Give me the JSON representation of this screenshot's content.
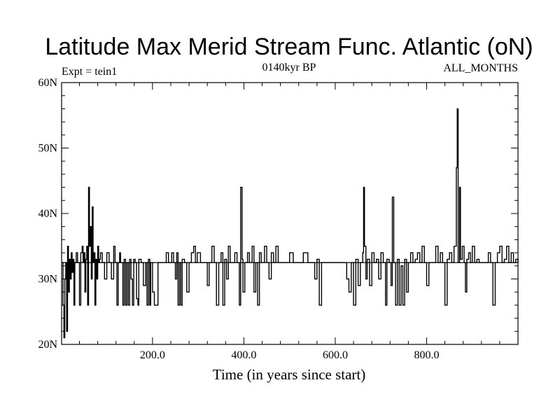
{
  "chart_data": {
    "type": "line",
    "title": "Latitude Max Merid Stream Func. Atlantic (oN)",
    "subtitle_left": "Expt = tein1",
    "subtitle_center": "0140kyr BP",
    "subtitle_right": "ALL_MONTHS",
    "xlabel": "Time (in years since start)",
    "ylabel": "",
    "xlim": [
      1,
      1000
    ],
    "ylim": [
      20,
      60
    ],
    "x_ticks": [
      200,
      400,
      600,
      800
    ],
    "x_tick_labels": [
      "200.0",
      "400.0",
      "600.0",
      "800.0"
    ],
    "y_ticks": [
      20,
      30,
      40,
      50,
      60
    ],
    "y_tick_labels": [
      "20N",
      "30N",
      "40N",
      "50N",
      "60N"
    ],
    "baseline": 32.5,
    "series": [
      {
        "name": "Latitude Max Merid Stream Func",
        "points": [
          [
            1,
            32.5
          ],
          [
            4,
            26
          ],
          [
            6,
            21
          ],
          [
            8,
            30
          ],
          [
            10,
            32.5
          ],
          [
            12,
            22
          ],
          [
            14,
            35
          ],
          [
            16,
            28
          ],
          [
            18,
            33
          ],
          [
            20,
            30
          ],
          [
            22,
            34
          ],
          [
            24,
            31
          ],
          [
            26,
            33
          ],
          [
            28,
            26
          ],
          [
            30,
            32.5
          ],
          [
            33,
            34
          ],
          [
            36,
            32.5
          ],
          [
            40,
            26
          ],
          [
            43,
            34
          ],
          [
            46,
            35
          ],
          [
            48,
            32.5
          ],
          [
            50,
            34
          ],
          [
            52,
            28
          ],
          [
            54,
            33
          ],
          [
            56,
            35
          ],
          [
            58,
            26
          ],
          [
            60,
            44
          ],
          [
            62,
            35
          ],
          [
            64,
            38
          ],
          [
            66,
            30
          ],
          [
            68,
            41
          ],
          [
            70,
            32.5
          ],
          [
            72,
            34
          ],
          [
            74,
            26
          ],
          [
            76,
            33
          ],
          [
            78,
            30
          ],
          [
            80,
            35
          ],
          [
            82,
            32.5
          ],
          [
            84,
            33
          ],
          [
            86,
            34
          ],
          [
            90,
            32.5
          ],
          [
            95,
            30
          ],
          [
            100,
            34
          ],
          [
            105,
            32.5
          ],
          [
            110,
            30
          ],
          [
            115,
            35
          ],
          [
            118,
            32.5
          ],
          [
            122,
            26
          ],
          [
            125,
            32.5
          ],
          [
            128,
            34
          ],
          [
            130,
            32.5
          ],
          [
            135,
            26
          ],
          [
            138,
            33
          ],
          [
            141,
            26
          ],
          [
            144,
            32.5
          ],
          [
            147,
            26
          ],
          [
            150,
            33
          ],
          [
            153,
            30
          ],
          [
            156,
            26
          ],
          [
            159,
            33
          ],
          [
            162,
            32.5
          ],
          [
            165,
            27
          ],
          [
            168,
            26
          ],
          [
            170,
            33
          ],
          [
            175,
            32.5
          ],
          [
            180,
            29
          ],
          [
            185,
            32.5
          ],
          [
            188,
            26
          ],
          [
            191,
            33
          ],
          [
            194,
            26
          ],
          [
            196,
            32.5
          ],
          [
            200,
            28
          ],
          [
            204,
            26
          ],
          [
            208,
            26
          ],
          [
            212,
            32.5
          ],
          [
            225,
            32.5
          ],
          [
            230,
            34
          ],
          [
            235,
            32.5
          ],
          [
            242,
            34
          ],
          [
            246,
            32.5
          ],
          [
            250,
            30
          ],
          [
            253,
            34
          ],
          [
            256,
            26
          ],
          [
            259,
            32.5
          ],
          [
            262,
            26
          ],
          [
            265,
            33
          ],
          [
            270,
            32.5
          ],
          [
            275,
            28
          ],
          [
            280,
            32.5
          ],
          [
            285,
            34
          ],
          [
            290,
            35
          ],
          [
            294,
            32.5
          ],
          [
            298,
            34
          ],
          [
            305,
            32.5
          ],
          [
            315,
            32.5
          ],
          [
            320,
            29
          ],
          [
            324,
            32.5
          ],
          [
            330,
            35
          ],
          [
            335,
            32.5
          ],
          [
            340,
            26
          ],
          [
            345,
            32.5
          ],
          [
            350,
            34
          ],
          [
            354,
            26
          ],
          [
            358,
            33
          ],
          [
            362,
            30
          ],
          [
            366,
            35
          ],
          [
            370,
            32.5
          ],
          [
            375,
            32.5
          ],
          [
            380,
            34
          ],
          [
            385,
            32.5
          ],
          [
            390,
            26
          ],
          [
            393,
            44
          ],
          [
            396,
            33
          ],
          [
            398,
            28
          ],
          [
            402,
            32.5
          ],
          [
            408,
            34
          ],
          [
            412,
            32.5
          ],
          [
            418,
            35
          ],
          [
            422,
            28
          ],
          [
            426,
            32.5
          ],
          [
            430,
            26
          ],
          [
            434,
            34
          ],
          [
            438,
            32.5
          ],
          [
            445,
            35
          ],
          [
            450,
            32.5
          ],
          [
            455,
            30
          ],
          [
            460,
            34
          ],
          [
            465,
            32.5
          ],
          [
            470,
            35
          ],
          [
            475,
            32.5
          ],
          [
            485,
            32.5
          ],
          [
            500,
            34
          ],
          [
            508,
            32.5
          ],
          [
            520,
            32.5
          ],
          [
            530,
            34
          ],
          [
            540,
            32.5
          ],
          [
            555,
            30
          ],
          [
            560,
            33
          ],
          [
            565,
            26
          ],
          [
            570,
            32.5
          ],
          [
            585,
            32.5
          ],
          [
            600,
            32.5
          ],
          [
            615,
            32.5
          ],
          [
            625,
            30
          ],
          [
            630,
            28
          ],
          [
            635,
            32.5
          ],
          [
            640,
            26
          ],
          [
            645,
            33
          ],
          [
            650,
            29
          ],
          [
            655,
            32.5
          ],
          [
            660,
            34
          ],
          [
            662,
            44
          ],
          [
            664,
            35
          ],
          [
            667,
            30
          ],
          [
            670,
            33
          ],
          [
            675,
            29
          ],
          [
            680,
            34
          ],
          [
            685,
            32.5
          ],
          [
            690,
            33
          ],
          [
            695,
            30
          ],
          [
            700,
            34
          ],
          [
            705,
            32.5
          ],
          [
            710,
            26
          ],
          [
            713,
            33
          ],
          [
            718,
            32.5
          ],
          [
            722,
            29
          ],
          [
            725,
            42.5
          ],
          [
            728,
            32.5
          ],
          [
            732,
            26
          ],
          [
            736,
            33
          ],
          [
            740,
            26
          ],
          [
            744,
            32
          ],
          [
            748,
            26
          ],
          [
            752,
            33
          ],
          [
            756,
            28
          ],
          [
            760,
            32.5
          ],
          [
            765,
            34
          ],
          [
            770,
            32.5
          ],
          [
            775,
            33
          ],
          [
            780,
            34
          ],
          [
            785,
            32.5
          ],
          [
            790,
            35
          ],
          [
            795,
            32.5
          ],
          [
            800,
            29
          ],
          [
            805,
            32.5
          ],
          [
            812,
            32.5
          ],
          [
            820,
            35
          ],
          [
            825,
            32.5
          ],
          [
            830,
            34
          ],
          [
            835,
            32.5
          ],
          [
            840,
            26
          ],
          [
            845,
            33
          ],
          [
            850,
            34
          ],
          [
            855,
            32.5
          ],
          [
            860,
            35
          ],
          [
            865,
            47
          ],
          [
            867,
            56
          ],
          [
            869,
            32.5
          ],
          [
            872,
            44
          ],
          [
            874,
            33
          ],
          [
            878,
            35
          ],
          [
            882,
            32.5
          ],
          [
            885,
            28
          ],
          [
            888,
            33
          ],
          [
            892,
            34
          ],
          [
            896,
            32.5
          ],
          [
            900,
            35
          ],
          [
            905,
            32.5
          ],
          [
            910,
            33
          ],
          [
            915,
            32.5
          ],
          [
            925,
            32.5
          ],
          [
            935,
            34
          ],
          [
            940,
            32.5
          ],
          [
            945,
            26
          ],
          [
            950,
            32.5
          ],
          [
            955,
            34
          ],
          [
            960,
            35
          ],
          [
            965,
            32.5
          ],
          [
            970,
            33
          ],
          [
            975,
            35
          ],
          [
            980,
            32.5
          ],
          [
            985,
            34
          ],
          [
            990,
            32.5
          ],
          [
            995,
            33
          ],
          [
            1000,
            32.5
          ]
        ]
      }
    ]
  }
}
